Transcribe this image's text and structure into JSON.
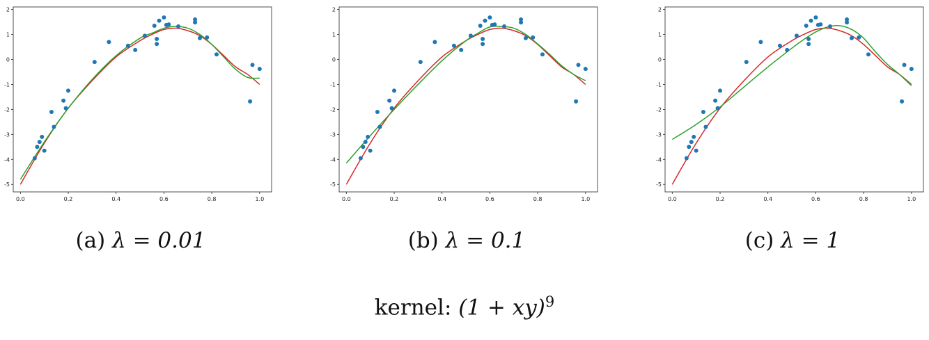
{
  "chart_data": [
    {
      "type": "scatter",
      "caption_prefix": "(a)",
      "caption_lambda": "λ = 0.01",
      "xlim": [
        -0.03,
        1.05
      ],
      "ylim": [
        -5.3,
        2.1
      ],
      "x_ticks": [
        "0.0",
        "0.2",
        "0.4",
        "0.6",
        "0.8",
        "1.0"
      ],
      "y_ticks": [
        "-5",
        "-4",
        "-3",
        "-2",
        "-1",
        "0",
        "1",
        "2"
      ],
      "points": {
        "color": "#1f77b4",
        "x": [
          0.06,
          0.07,
          0.08,
          0.09,
          0.1,
          0.13,
          0.14,
          0.18,
          0.19,
          0.2,
          0.31,
          0.37,
          0.45,
          0.48,
          0.52,
          0.56,
          0.57,
          0.57,
          0.58,
          0.6,
          0.61,
          0.62,
          0.66,
          0.73,
          0.73,
          0.75,
          0.78,
          0.82,
          0.96,
          0.97,
          1.0
        ],
        "y": [
          -3.95,
          -3.5,
          -3.3,
          -3.1,
          -3.65,
          -2.1,
          -2.7,
          -1.65,
          -1.95,
          -1.25,
          -0.1,
          0.7,
          0.55,
          0.38,
          0.95,
          1.35,
          0.82,
          0.62,
          1.55,
          1.68,
          1.38,
          1.4,
          1.32,
          1.6,
          1.48,
          0.85,
          0.88,
          0.2,
          -1.68,
          -0.22,
          -0.38
        ]
      },
      "series": [
        {
          "color": "#d62728",
          "x": [
            0.0,
            0.1,
            0.2,
            0.3,
            0.4,
            0.5,
            0.55,
            0.6,
            0.65,
            0.7,
            0.75,
            0.8,
            0.85,
            0.9,
            0.95,
            1.0
          ],
          "y": [
            -5.0,
            -3.35,
            -1.95,
            -0.85,
            0.1,
            0.75,
            1.0,
            1.2,
            1.25,
            1.15,
            0.95,
            0.6,
            0.15,
            -0.3,
            -0.6,
            -1.0
          ]
        },
        {
          "color": "#2ca02c",
          "x": [
            0.0,
            0.1,
            0.2,
            0.3,
            0.4,
            0.5,
            0.55,
            0.6,
            0.65,
            0.7,
            0.75,
            0.8,
            0.85,
            0.9,
            0.95,
            1.0
          ],
          "y": [
            -4.8,
            -3.3,
            -1.95,
            -0.8,
            0.15,
            0.85,
            1.05,
            1.25,
            1.32,
            1.25,
            1.0,
            0.6,
            0.1,
            -0.4,
            -0.72,
            -0.75
          ]
        }
      ]
    },
    {
      "type": "scatter",
      "caption_prefix": "(b)",
      "caption_lambda": "λ = 0.1",
      "xlim": [
        -0.03,
        1.05
      ],
      "ylim": [
        -5.3,
        2.1
      ],
      "x_ticks": [
        "0.0",
        "0.2",
        "0.4",
        "0.6",
        "0.8",
        "1.0"
      ],
      "y_ticks": [
        "-5",
        "-4",
        "-3",
        "-2",
        "-1",
        "0",
        "1",
        "2"
      ],
      "points": {
        "color": "#1f77b4",
        "x": [
          0.06,
          0.07,
          0.08,
          0.09,
          0.1,
          0.13,
          0.14,
          0.18,
          0.19,
          0.2,
          0.31,
          0.37,
          0.45,
          0.48,
          0.52,
          0.56,
          0.57,
          0.57,
          0.58,
          0.6,
          0.61,
          0.62,
          0.66,
          0.73,
          0.73,
          0.75,
          0.78,
          0.82,
          0.96,
          0.97,
          1.0
        ],
        "y": [
          -3.95,
          -3.5,
          -3.3,
          -3.1,
          -3.65,
          -2.1,
          -2.7,
          -1.65,
          -1.95,
          -1.25,
          -0.1,
          0.7,
          0.55,
          0.38,
          0.95,
          1.35,
          0.82,
          0.62,
          1.55,
          1.68,
          1.38,
          1.4,
          1.32,
          1.6,
          1.48,
          0.85,
          0.88,
          0.2,
          -1.68,
          -0.22,
          -0.38
        ]
      },
      "series": [
        {
          "color": "#d62728",
          "x": [
            0.0,
            0.1,
            0.2,
            0.3,
            0.4,
            0.5,
            0.55,
            0.6,
            0.65,
            0.7,
            0.75,
            0.8,
            0.85,
            0.9,
            0.95,
            1.0
          ],
          "y": [
            -5.0,
            -3.35,
            -1.95,
            -0.85,
            0.1,
            0.75,
            1.0,
            1.2,
            1.25,
            1.15,
            0.95,
            0.6,
            0.15,
            -0.3,
            -0.6,
            -1.0
          ]
        },
        {
          "color": "#2ca02c",
          "x": [
            0.0,
            0.1,
            0.2,
            0.3,
            0.4,
            0.5,
            0.55,
            0.6,
            0.65,
            0.7,
            0.75,
            0.8,
            0.85,
            0.9,
            0.95,
            1.0
          ],
          "y": [
            -4.15,
            -3.05,
            -2.0,
            -1.0,
            -0.05,
            0.75,
            1.05,
            1.3,
            1.32,
            1.25,
            1.0,
            0.62,
            0.2,
            -0.25,
            -0.6,
            -0.85
          ]
        }
      ]
    },
    {
      "type": "scatter",
      "caption_prefix": "(c)",
      "caption_lambda": "λ = 1",
      "xlim": [
        -0.03,
        1.05
      ],
      "ylim": [
        -5.3,
        2.1
      ],
      "x_ticks": [
        "0.0",
        "0.2",
        "0.4",
        "0.6",
        "0.8",
        "1.0"
      ],
      "y_ticks": [
        "-5",
        "-4",
        "-3",
        "-2",
        "-1",
        "0",
        "1",
        "2"
      ],
      "points": {
        "color": "#1f77b4",
        "x": [
          0.06,
          0.07,
          0.08,
          0.09,
          0.1,
          0.13,
          0.14,
          0.18,
          0.19,
          0.2,
          0.31,
          0.37,
          0.45,
          0.48,
          0.52,
          0.56,
          0.57,
          0.57,
          0.58,
          0.6,
          0.61,
          0.62,
          0.66,
          0.73,
          0.73,
          0.75,
          0.78,
          0.82,
          0.96,
          0.97,
          1.0
        ],
        "y": [
          -3.95,
          -3.5,
          -3.3,
          -3.1,
          -3.65,
          -2.1,
          -2.7,
          -1.65,
          -1.95,
          -1.25,
          -0.1,
          0.7,
          0.55,
          0.38,
          0.95,
          1.35,
          0.82,
          0.62,
          1.55,
          1.68,
          1.38,
          1.4,
          1.32,
          1.6,
          1.48,
          0.85,
          0.88,
          0.2,
          -1.68,
          -0.22,
          -0.38
        ]
      },
      "series": [
        {
          "color": "#d62728",
          "x": [
            0.0,
            0.1,
            0.2,
            0.3,
            0.4,
            0.5,
            0.55,
            0.6,
            0.65,
            0.7,
            0.75,
            0.8,
            0.85,
            0.9,
            0.95,
            1.0
          ],
          "y": [
            -5.0,
            -3.35,
            -1.95,
            -0.85,
            0.1,
            0.75,
            1.0,
            1.2,
            1.25,
            1.15,
            0.95,
            0.6,
            0.15,
            -0.3,
            -0.6,
            -1.0
          ]
        },
        {
          "color": "#2ca02c",
          "x": [
            0.0,
            0.1,
            0.2,
            0.3,
            0.4,
            0.5,
            0.55,
            0.6,
            0.65,
            0.7,
            0.75,
            0.8,
            0.85,
            0.9,
            0.95,
            1.0
          ],
          "y": [
            -3.2,
            -2.6,
            -1.9,
            -1.1,
            -0.3,
            0.45,
            0.8,
            1.1,
            1.3,
            1.35,
            1.2,
            0.85,
            0.3,
            -0.2,
            -0.6,
            -1.05
          ]
        }
      ]
    }
  ],
  "figure_caption": {
    "prefix": "kernel:",
    "expression": "(1 + xy)",
    "exponent": "9"
  }
}
